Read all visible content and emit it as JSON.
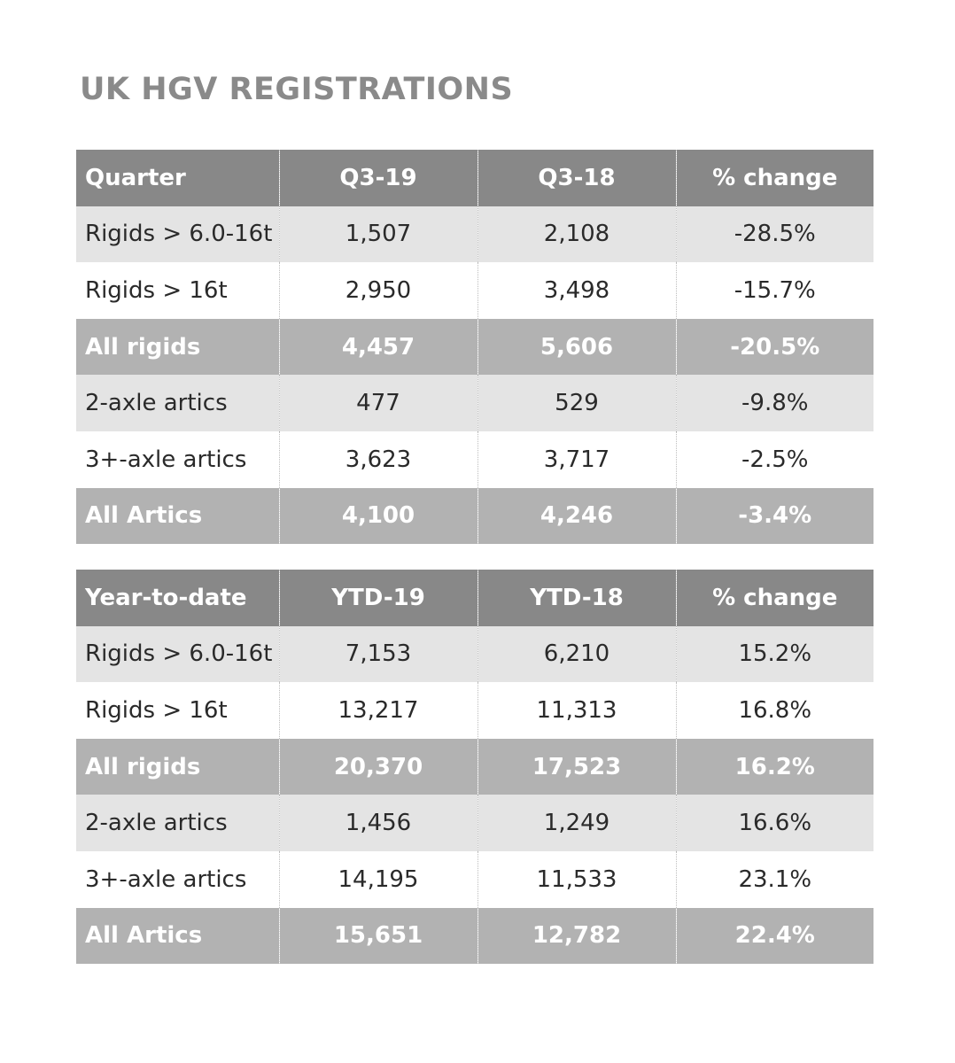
{
  "title": "UK HGV REGISTRATIONS",
  "colors": {
    "header_bg": "#888888",
    "total_bg": "#b2b2b2",
    "light_row_bg": "#e4e4e4",
    "title_text": "#8a8a8a"
  },
  "quarter_table": {
    "headers": [
      "Quarter",
      "Q3-19",
      "Q3-18",
      "% change"
    ],
    "rows": [
      {
        "label": "Rigids > 6.0-16t",
        "current": "1,507",
        "previous": "2,108",
        "change": "-28.5%"
      },
      {
        "label": "Rigids > 16t",
        "current": "2,950",
        "previous": "3,498",
        "change": "-15.7%"
      },
      {
        "label": "All rigids",
        "current": "4,457",
        "previous": "5,606",
        "change": "-20.5%"
      },
      {
        "label": "2-axle artics",
        "current": "477",
        "previous": "529",
        "change": "-9.8%"
      },
      {
        "label": "3+-axle artics",
        "current": "3,623",
        "previous": "3,717",
        "change": "-2.5%"
      },
      {
        "label": "All Artics",
        "current": "4,100",
        "previous": "4,246",
        "change": "-3.4%"
      }
    ]
  },
  "ytd_table": {
    "headers": [
      "Year-to-date",
      "YTD-19",
      "YTD-18",
      "% change"
    ],
    "rows": [
      {
        "label": "Rigids > 6.0-16t",
        "current": "7,153",
        "previous": "6,210",
        "change": "15.2%"
      },
      {
        "label": "Rigids > 16t",
        "current": "13,217",
        "previous": "11,313",
        "change": "16.8%"
      },
      {
        "label": "All rigids",
        "current": "20,370",
        "previous": "17,523",
        "change": "16.2%"
      },
      {
        "label": "2-axle artics",
        "current": "1,456",
        "previous": "1,249",
        "change": "16.6%"
      },
      {
        "label": "3+-axle artics",
        "current": "14,195",
        "previous": "11,533",
        "change": "23.1%"
      },
      {
        "label": "All Artics",
        "current": "15,651",
        "previous": "12,782",
        "change": "22.4%"
      }
    ]
  }
}
